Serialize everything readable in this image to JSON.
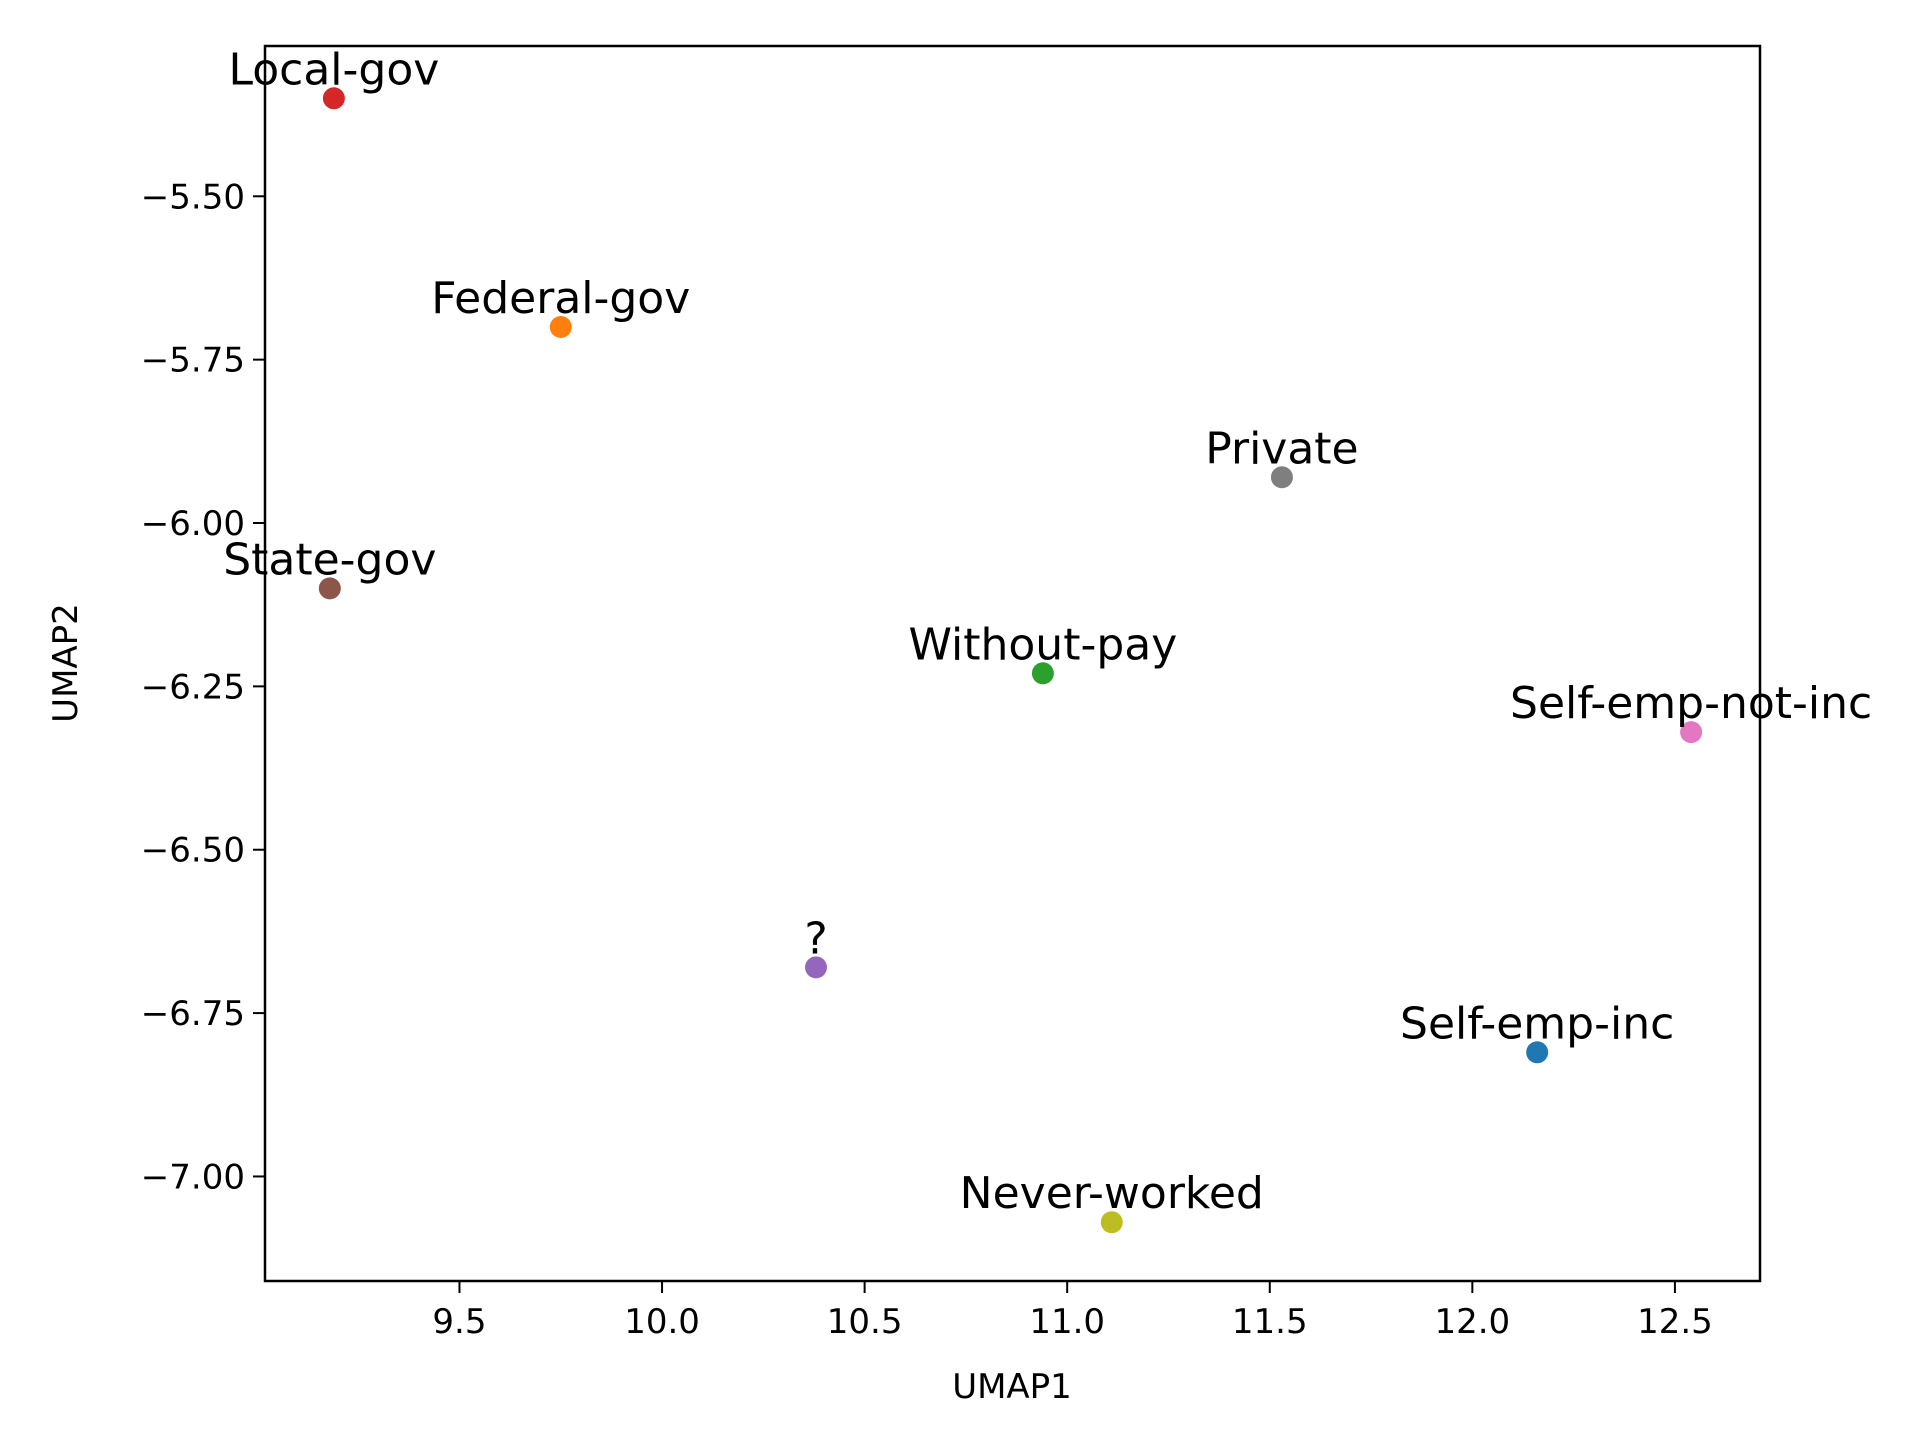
{
  "chart_data": {
    "type": "scatter",
    "title": "",
    "xlabel": "UMAP1",
    "ylabel": "UMAP2",
    "xlim": [
      9.02,
      12.71
    ],
    "ylim": [
      -7.16,
      -5.27
    ],
    "xticks": [
      9.5,
      10.0,
      10.5,
      11.0,
      11.5,
      12.0,
      12.5
    ],
    "xtick_labels": [
      "9.5",
      "10.0",
      "10.5",
      "11.0",
      "11.5",
      "12.0",
      "12.5"
    ],
    "yticks": [
      -5.5,
      -5.75,
      -6.0,
      -6.25,
      -6.5,
      -6.75,
      -7.0
    ],
    "ytick_labels": [
      "−5.50",
      "−5.75",
      "−6.00",
      "−6.25",
      "−6.50",
      "−6.75",
      "−7.00"
    ],
    "grid": false,
    "legend": "none",
    "points": [
      {
        "label": "Local-gov",
        "x": 9.19,
        "y": -5.35,
        "color": "#d62728"
      },
      {
        "label": "Federal-gov",
        "x": 9.75,
        "y": -5.7,
        "color": "#ff7f0e"
      },
      {
        "label": "Private",
        "x": 11.53,
        "y": -5.93,
        "color": "#7f7f7f"
      },
      {
        "label": "State-gov",
        "x": 9.18,
        "y": -6.1,
        "color": "#8c564b"
      },
      {
        "label": "Without-pay",
        "x": 10.94,
        "y": -6.23,
        "color": "#2ca02c"
      },
      {
        "label": "Self-emp-not-inc",
        "x": 12.54,
        "y": -6.32,
        "color": "#e377c2"
      },
      {
        "label": "?",
        "x": 10.38,
        "y": -6.68,
        "color": "#9467bd"
      },
      {
        "label": "Self-emp-inc",
        "x": 12.16,
        "y": -6.81,
        "color": "#1f77b4"
      },
      {
        "label": "Never-worked",
        "x": 11.11,
        "y": -7.07,
        "color": "#bcbd22"
      }
    ]
  }
}
